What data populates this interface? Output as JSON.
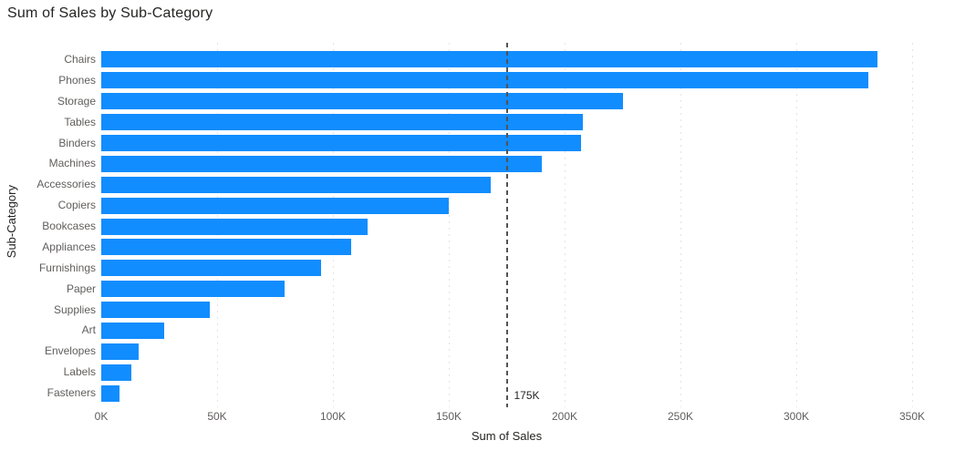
{
  "chart_data": {
    "type": "bar",
    "orientation": "horizontal",
    "title": "Sum of Sales by Sub-Category",
    "xlabel": "Sum of Sales",
    "ylabel": "Sub-Category",
    "categories": [
      "Chairs",
      "Phones",
      "Storage",
      "Tables",
      "Binders",
      "Machines",
      "Accessories",
      "Copiers",
      "Bookcases",
      "Appliances",
      "Furnishings",
      "Paper",
      "Supplies",
      "Art",
      "Envelopes",
      "Labels",
      "Fasteners"
    ],
    "values": [
      335000,
      331000,
      225000,
      208000,
      207000,
      190000,
      168000,
      150000,
      115000,
      108000,
      95000,
      79000,
      47000,
      27000,
      16000,
      13000,
      8000
    ],
    "xlim": [
      0,
      350000
    ],
    "x_ticks": [
      "0K",
      "50K",
      "100K",
      "150K",
      "200K",
      "250K",
      "300K",
      "350K"
    ],
    "x_tick_values": [
      0,
      50000,
      100000,
      150000,
      200000,
      250000,
      300000,
      350000
    ],
    "grid": "vertical-dotted",
    "legend": "none",
    "reference_line": {
      "value": 175000,
      "label": "175K"
    }
  },
  "colors": {
    "bar": "#118DFF",
    "title_text": "#252423",
    "axis_text": "#605E5C",
    "gridline": "#E3E3E3",
    "reference_line": "#535353",
    "background": "#FFFFFF"
  }
}
